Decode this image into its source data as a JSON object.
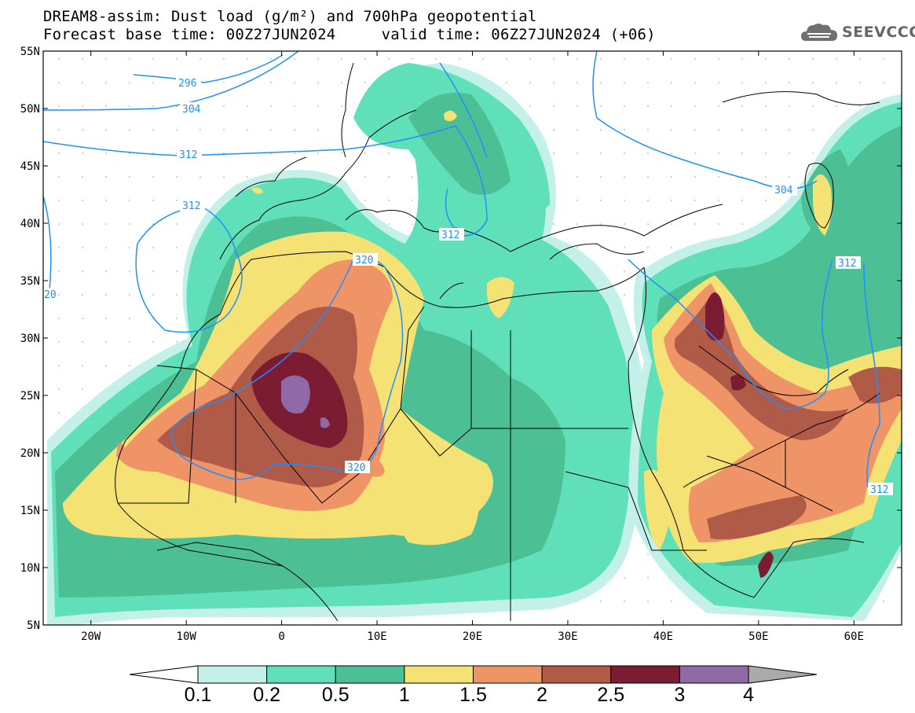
{
  "header": {
    "title_line1": "DREAM8-assim: Dust load (g/m²) and 700hPa geopotential",
    "title_line2": "Forecast base time: 00Z27JUN2024     valid time: 06Z27JUN2024 (+06)"
  },
  "logo": {
    "text": "SEEVCCC",
    "icon": "cloud-icon"
  },
  "map": {
    "lat_labels": [
      "55N",
      "50N",
      "45N",
      "40N",
      "35N",
      "30N",
      "25N",
      "20N",
      "15N",
      "10N",
      "5N"
    ],
    "lat_values": [
      55,
      50,
      45,
      40,
      35,
      30,
      25,
      20,
      15,
      10,
      5
    ],
    "lon_labels": [
      "20W",
      "10W",
      "0",
      "10E",
      "20E",
      "30E",
      "40E",
      "50E",
      "60E"
    ],
    "lon_values": [
      -20,
      -10,
      0,
      10,
      20,
      30,
      40,
      50,
      60
    ],
    "lon_range": [
      -25,
      65
    ],
    "lat_range": [
      5,
      55
    ],
    "contour_labels": [
      "296",
      "304",
      "312",
      "312",
      "312",
      "320",
      "320",
      "304",
      "312",
      "312",
      "20"
    ],
    "background_color": "#ffffff",
    "coast_color": "#000000",
    "contour_color": "#1e90ff"
  },
  "colorbar": {
    "levels": [
      "0.1",
      "0.2",
      "0.5",
      "1",
      "1.5",
      "2",
      "2.5",
      "3",
      "4"
    ],
    "colors": [
      "#c4f0ea",
      "#5fe0b8",
      "#4cbf95",
      "#f5e274",
      "#ee9466",
      "#b05a48",
      "#7c1c33",
      "#8f6aa7",
      "#aaaaaa"
    ]
  }
}
